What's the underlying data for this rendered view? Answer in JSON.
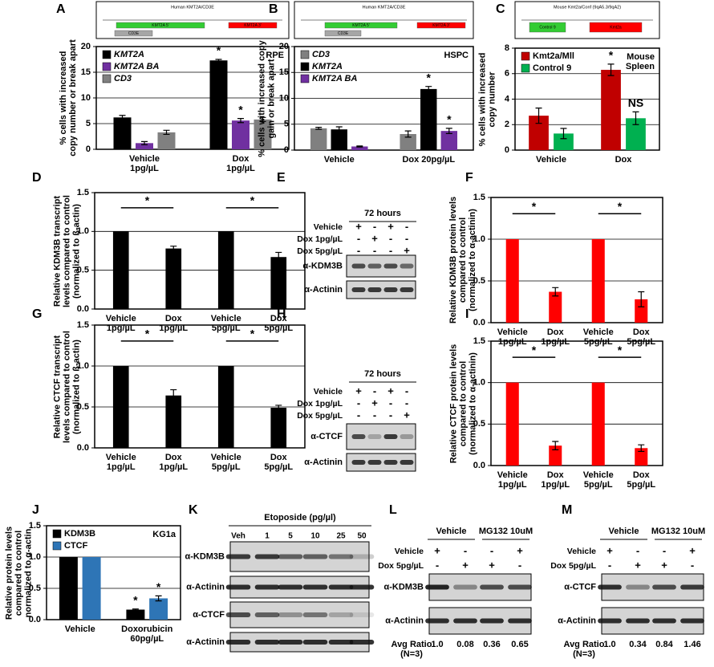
{
  "chart_data": [
    {
      "panel": "A",
      "type": "bar",
      "y_label": "% cells with increased\ncopy number or break apart",
      "categories": [
        "Vehicle\n1pg/µL",
        "Dox\n1pg/µL"
      ],
      "series": [
        {
          "name": "KMT2A",
          "color": "#000000",
          "values": [
            6.2,
            17.3
          ],
          "errors": [
            0.4,
            0.2
          ],
          "markers": [
            null,
            "*"
          ]
        },
        {
          "name": "KMT2A BA",
          "color": "#7030a0",
          "values": [
            1.2,
            5.6
          ],
          "errors": [
            0.3,
            0.4
          ],
          "markers": [
            null,
            "*"
          ]
        },
        {
          "name": "CD3",
          "color": "#808080",
          "values": [
            3.3,
            5.8
          ],
          "errors": [
            0.4,
            0.4
          ]
        }
      ],
      "note": "RPE",
      "legend": "upper left",
      "ylim": [
        0,
        20
      ],
      "yticks": [
        0,
        5,
        10,
        15,
        20
      ],
      "grid": true
    },
    {
      "panel": "B",
      "type": "bar",
      "y_label": "% cells with increased copy\ngain or break apart",
      "categories": [
        "Vehicle",
        "Dox 20pg/µL"
      ],
      "series": [
        {
          "name": "CD3",
          "color": "#808080",
          "values": [
            4.2,
            3.1
          ],
          "errors": [
            0.2,
            0.6
          ]
        },
        {
          "name": "KMT2A",
          "color": "#000000",
          "values": [
            4.0,
            11.8
          ],
          "errors": [
            0.5,
            0.5
          ],
          "markers": [
            null,
            "*"
          ]
        },
        {
          "name": "KMT2A BA",
          "color": "#7030a0",
          "values": [
            0.7,
            3.7
          ],
          "errors": [
            0.1,
            0.5
          ],
          "markers": [
            null,
            "*"
          ]
        }
      ],
      "note": "HSPC",
      "legend": "upper left",
      "ylim": [
        0,
        20
      ],
      "yticks": [
        0,
        5,
        10,
        15,
        20
      ],
      "grid": true
    },
    {
      "panel": "C",
      "type": "bar",
      "y_label": "% cells with increased\ncopy number",
      "categories": [
        "Vehicle",
        "Dox"
      ],
      "series": [
        {
          "name": "Kmt2a/Mll",
          "color": "#c00000",
          "values": [
            2.7,
            6.3
          ],
          "errors": [
            0.6,
            0.45
          ],
          "markers": [
            null,
            "*"
          ]
        },
        {
          "name": "Control 9",
          "color": "#00b050",
          "values": [
            1.3,
            2.5
          ],
          "errors": [
            0.4,
            0.5
          ],
          "markers": [
            null,
            "NS"
          ]
        }
      ],
      "note": "Mouse\nSpleen",
      "legend": "upper left",
      "ylim": [
        0,
        8
      ],
      "yticks": [
        0,
        2,
        4,
        6,
        8
      ],
      "grid": true
    },
    {
      "panel": "D",
      "type": "bar",
      "y_label": "Relative KDM3B transcript\nlevels compared to control\n(normalized to ß-actin)",
      "categories": [
        "Vehicle\n1pg/µL",
        "Dox\n1pg/µL",
        "Vehicle\n5pg/µL",
        "Dox\n5pg/µL"
      ],
      "values": [
        1,
        0.78,
        1,
        0.67
      ],
      "errors": [
        null,
        0.03,
        null,
        0.06
      ],
      "color": "#000000",
      "brackets": [
        {
          "from": 0,
          "to": 1,
          "label": "*"
        },
        {
          "from": 2,
          "to": 3,
          "label": "*"
        }
      ],
      "ylim": [
        0,
        1.5
      ],
      "yticks": [
        {
          "value": 0,
          "label": "0.0"
        },
        0.5,
        {
          "value": 1,
          "label": "1.0"
        },
        1.5
      ],
      "grid": true
    },
    {
      "panel": "F",
      "type": "bar",
      "y_label": "Relative KDM3B protein levels\ncompared to control\n(normalized to α-actinin)",
      "categories": [
        "Vehicle\n1pg/µL",
        "Dox\n1pg/µL",
        "Vehicle\n5pg/µL",
        "Dox\n5pg/µL"
      ],
      "values": [
        1,
        0.37,
        1,
        0.28
      ],
      "errors": [
        null,
        0.05,
        null,
        0.09
      ],
      "color": "#ff0000",
      "brackets": [
        {
          "from": 0,
          "to": 1,
          "label": "*"
        },
        {
          "from": 2,
          "to": 3,
          "label": "*"
        }
      ],
      "ylim": [
        0,
        1.5
      ],
      "yticks": [
        {
          "value": 0,
          "label": "0.0"
        },
        0.5,
        {
          "value": 1,
          "label": "1.0"
        },
        1.5
      ],
      "grid": true
    },
    {
      "panel": "G",
      "type": "bar",
      "y_label": "Relative CTCF transcript\nlevels compared to control\n(normalized to ß-actin)",
      "categories": [
        "Vehicle\n1pg/µL",
        "Dox\n1pg/µL",
        "Vehicle\n5pg/µL",
        "Dox\n5pg/µL"
      ],
      "values": [
        1,
        0.64,
        1,
        0.49
      ],
      "errors": [
        null,
        0.07,
        null,
        0.03
      ],
      "color": "#000000",
      "brackets": [
        {
          "from": 0,
          "to": 1,
          "label": "*"
        },
        {
          "from": 2,
          "to": 3,
          "label": "*"
        }
      ],
      "ylim": [
        0,
        1.5
      ],
      "yticks": [
        {
          "value": 0,
          "label": "0.0"
        },
        0.5,
        {
          "value": 1,
          "label": "1.0"
        },
        1.5
      ],
      "grid": true
    },
    {
      "panel": "I",
      "type": "bar",
      "y_label": "Relative CTCF protein levels\ncompared to control\n(normalized to α-actinin)",
      "categories": [
        "Vehicle\n1pg/µL",
        "Dox\n1pg/µL",
        "Vehicle\n5pg/µL",
        "Dox\n5pg/µL"
      ],
      "values": [
        1,
        0.24,
        1,
        0.21
      ],
      "errors": [
        null,
        0.05,
        null,
        0.04
      ],
      "color": "#ff0000",
      "brackets": [
        {
          "from": 0,
          "to": 1,
          "label": "*"
        },
        {
          "from": 2,
          "to": 3,
          "label": "*"
        }
      ],
      "ylim": [
        0,
        1.5
      ],
      "yticks": [
        {
          "value": 0,
          "label": "0.0"
        },
        0.5,
        {
          "value": 1,
          "label": "1.0"
        },
        1.5
      ],
      "grid": true
    },
    {
      "panel": "J",
      "type": "bar",
      "y_label": "Relative protein levels\ncompared to control\nnormalized to α-actin",
      "categories": [
        "Vehicle",
        "Doxorubicin\n60pg/µL"
      ],
      "series": [
        {
          "name": "KDM3B",
          "color": "#000000",
          "values": [
            1,
            0.16
          ],
          "errors": [
            null,
            0.01
          ],
          "markers": [
            null,
            "*"
          ]
        },
        {
          "name": "CTCF",
          "color": "#2e75b6",
          "values": [
            1,
            0.34
          ],
          "errors": [
            null,
            0.04
          ],
          "markers": [
            null,
            "*"
          ]
        }
      ],
      "note": "KG1a",
      "legend": "upper left",
      "ylim": [
        0,
        1.5
      ],
      "yticks": [
        {
          "value": 0,
          "label": "0.0"
        },
        0.5,
        {
          "value": 1,
          "label": "1.0"
        },
        1.5
      ],
      "grid": true
    }
  ],
  "gene_maps": [
    {
      "title": "Human KMT2A/CD3E",
      "segments": [
        {
          "label": "KMT2A 5'",
          "color": "#33cc33"
        },
        {
          "label": "KMT2A 3'",
          "color": "#ff0000"
        },
        {
          "label": "CD3E",
          "color": "#a6a6a6"
        }
      ]
    },
    {
      "title": "Human KMT2A/CD3E",
      "segments": [
        {
          "label": "KMT2A 5'",
          "color": "#33cc33"
        },
        {
          "label": "KMT2A 3'",
          "color": "#ff0000"
        },
        {
          "label": "CD3E",
          "color": "#a6a6a6"
        }
      ]
    },
    {
      "title": "Mouse Kmt2a/Conf (9qA5.3/9qA2)",
      "segments": [
        {
          "label": "Control 9",
          "color": "#33cc33"
        },
        {
          "label": "Kmt2a",
          "color": "#ff0000"
        }
      ]
    }
  ],
  "blots": [
    {
      "panel": "E",
      "header": "72 hours",
      "conditions": [
        "Vehicle",
        "Dox 1pg/µL",
        "Dox 5pg/µL"
      ],
      "signs": [
        [
          "+",
          "-",
          "+",
          "-"
        ],
        [
          "-",
          "+",
          "-",
          "-"
        ],
        [
          "-",
          "-",
          "-",
          "+"
        ]
      ],
      "rows": [
        "α-KDM3B",
        "α-Actinin"
      ]
    },
    {
      "panel": "H",
      "header": "72 hours",
      "conditions": [
        "Vehicle",
        "Dox 1pg/µL",
        "Dox 5pg/µL"
      ],
      "signs": [
        [
          "+",
          "-",
          "+",
          "-"
        ],
        [
          "-",
          "+",
          "-",
          "-"
        ],
        [
          "-",
          "-",
          "-",
          "+"
        ]
      ],
      "rows": [
        "α-CTCF",
        "α-Actinin"
      ]
    },
    {
      "panel": "K",
      "header": "Etoposide (pg/µl)",
      "lanes": [
        "Veh",
        "1",
        "5",
        "10",
        "25",
        "50"
      ],
      "rows": [
        "α-KDM3B",
        "α-Actinin",
        "α-CTCF",
        "α-Actinin"
      ]
    },
    {
      "panel": "L",
      "groups": [
        "Vehicle",
        "MG132 10uM"
      ],
      "conditions": [
        "Vehicle",
        "Dox 5pg/µL"
      ],
      "signs": [
        [
          "+",
          "-",
          "-",
          "+"
        ],
        [
          "-",
          "+",
          "+",
          "-"
        ]
      ],
      "rows": [
        "α-KDM3B",
        "α-Actinin"
      ],
      "ratio_label": "Avg Ratio\n(N=3)",
      "ratios": [
        "1.0",
        "0.08",
        "0.36",
        "0.65"
      ]
    },
    {
      "panel": "M",
      "groups": [
        "Vehicle",
        "MG132 10uM"
      ],
      "conditions": [
        "Vehicle",
        "Dox 5pg/µL"
      ],
      "signs": [
        [
          "+",
          "-",
          "-",
          "+"
        ],
        [
          "-",
          "+",
          "+",
          "-"
        ]
      ],
      "rows": [
        "α-CTCF",
        "α-Actinin"
      ],
      "ratio_label": "Avg Ratio\n(N=3)",
      "ratios": [
        "1.0",
        "0.34",
        "0.84",
        "1.46"
      ]
    }
  ]
}
